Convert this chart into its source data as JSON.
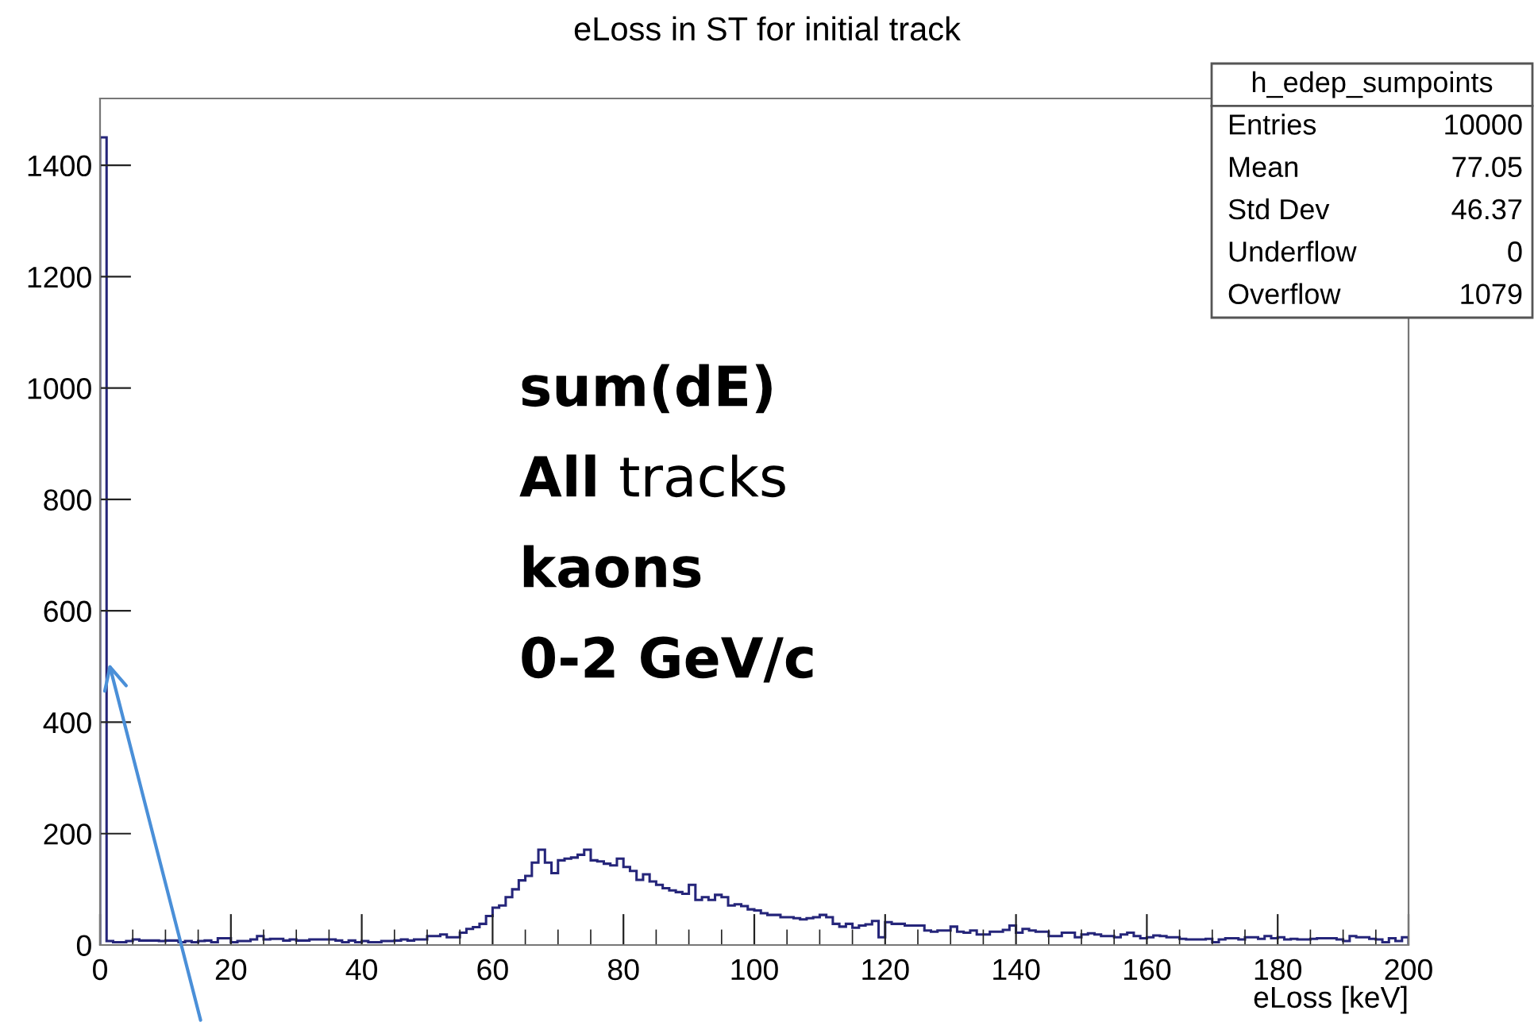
{
  "chart_data": {
    "type": "histogram",
    "title": "eLoss in ST for initial track",
    "xlabel": "eLoss [keV]",
    "bins": [
      0,
      1,
      2,
      3,
      4,
      5,
      6,
      7,
      8,
      9,
      10,
      11,
      12,
      13,
      14,
      15,
      16,
      17,
      18,
      19,
      20,
      21,
      22,
      23,
      24,
      25,
      26,
      27,
      28,
      29,
      30,
      31,
      32,
      33,
      34,
      35,
      36,
      37,
      38,
      39,
      40,
      41,
      42,
      43,
      44,
      45,
      46,
      47,
      48,
      49,
      50,
      51,
      52,
      53,
      54,
      55,
      56,
      57,
      58,
      59,
      60,
      61,
      62,
      63,
      64,
      65,
      66,
      67,
      68,
      69,
      70,
      71,
      72,
      73,
      74,
      75,
      76,
      77,
      78,
      79,
      80,
      81,
      82,
      83,
      84,
      85,
      86,
      87,
      88,
      89,
      90,
      91,
      92,
      93,
      94,
      95,
      96,
      97,
      98,
      99,
      100,
      101,
      102,
      103,
      104,
      105,
      106,
      107,
      108,
      109,
      110,
      111,
      112,
      113,
      114,
      115,
      116,
      117,
      118,
      119,
      120,
      121,
      122,
      123,
      124,
      125,
      126,
      127,
      128,
      129,
      130,
      131,
      132,
      133,
      134,
      135,
      136,
      137,
      138,
      139,
      140,
      141,
      142,
      143,
      144,
      145,
      146,
      147,
      148,
      149,
      150,
      151,
      152,
      153,
      154,
      155,
      156,
      157,
      158,
      159,
      160,
      161,
      162,
      163,
      164,
      165,
      166,
      167,
      168,
      169,
      170,
      171,
      172,
      173,
      174,
      175,
      176,
      177,
      178,
      179,
      180,
      181,
      182,
      183,
      184,
      185,
      186,
      187,
      188,
      189,
      190,
      191,
      192,
      193,
      194,
      195,
      196,
      197,
      198,
      199,
      200
    ],
    "values": [
      1450,
      7,
      5,
      5,
      7,
      10,
      8,
      8,
      8,
      7,
      8,
      8,
      5,
      7,
      5,
      7,
      8,
      5,
      12,
      12,
      5,
      7,
      7,
      10,
      16,
      10,
      11,
      11,
      8,
      10,
      8,
      8,
      10,
      10,
      10,
      10,
      8,
      5,
      8,
      5,
      7,
      5,
      5,
      7,
      7,
      8,
      10,
      8,
      10,
      10,
      16,
      16,
      19,
      14,
      14,
      22,
      29,
      32,
      38,
      52,
      67,
      71,
      86,
      100,
      116,
      124,
      148,
      171,
      148,
      129,
      152,
      155,
      157,
      162,
      171,
      152,
      150,
      146,
      143,
      155,
      140,
      133,
      117,
      127,
      114,
      108,
      102,
      98,
      95,
      92,
      108,
      81,
      86,
      81,
      90,
      86,
      71,
      73,
      70,
      64,
      62,
      57,
      54,
      54,
      50,
      50,
      48,
      46,
      48,
      50,
      54,
      50,
      38,
      33,
      38,
      31,
      35,
      37,
      43,
      14,
      41,
      38,
      38,
      35,
      35,
      35,
      26,
      24,
      26,
      26,
      33,
      24,
      22,
      26,
      19,
      19,
      24,
      24,
      27,
      35,
      22,
      29,
      26,
      24,
      24,
      16,
      16,
      22,
      22,
      14,
      19,
      21,
      19,
      16,
      16,
      14,
      19,
      22,
      16,
      12,
      14,
      17,
      16,
      14,
      14,
      11,
      10,
      10,
      10,
      11,
      5,
      10,
      12,
      12,
      10,
      14,
      14,
      11,
      16,
      12,
      14,
      10,
      11,
      10,
      10,
      11,
      12,
      12,
      12,
      10,
      7,
      16,
      14,
      14,
      11,
      10,
      5,
      12,
      7,
      14
    ],
    "color": "#25257a",
    "xlim": [
      0,
      200
    ],
    "xticks": [
      0,
      20,
      40,
      60,
      80,
      100,
      120,
      140,
      160,
      180,
      200
    ],
    "ylim": [
      0,
      1520
    ],
    "yticks": [
      0,
      200,
      400,
      600,
      800,
      1000,
      1200,
      1400
    ],
    "grid": false,
    "legend": false,
    "annotations": [
      "h_edep_sumpoints",
      "Entries 10000",
      "Mean 77.05",
      "Std Dev 46.37",
      "Underflow 0",
      "Overflow 1079",
      "sum(dE)",
      "All tracks",
      "kaons",
      "0-2 GeV/c"
    ]
  }
}
